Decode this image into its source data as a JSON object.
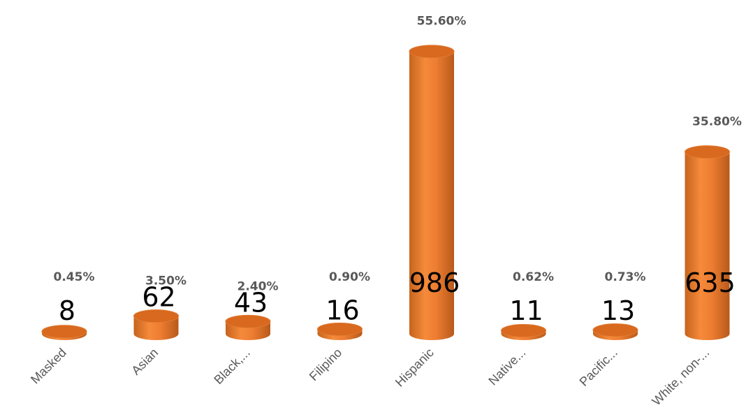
{
  "chart_data": {
    "type": "bar",
    "style": "3d-cylinder",
    "categories": [
      "Masked",
      "Asian",
      "Black,...",
      "Filipino",
      "Hispanic",
      "Native...",
      "Pacific...",
      "White, non-..."
    ],
    "values": [
      8,
      62,
      43,
      16,
      986,
      11,
      13,
      635
    ],
    "value_labels": [
      "8",
      "62",
      "43",
      "16",
      "986",
      "11",
      "13",
      "635"
    ],
    "percent_labels": [
      "0.45%",
      "3.50%",
      "2.40%",
      "0.90%",
      "55.60%",
      "0.62%",
      "0.73%",
      "35.80%"
    ],
    "ylim": [
      0,
      1000
    ],
    "grid": false,
    "legend": "none",
    "colors": {
      "bar": "#ED7D31",
      "bar_dark": "#B85A1B",
      "bar_light": "#F7A66A",
      "top": "#D8691F"
    }
  }
}
